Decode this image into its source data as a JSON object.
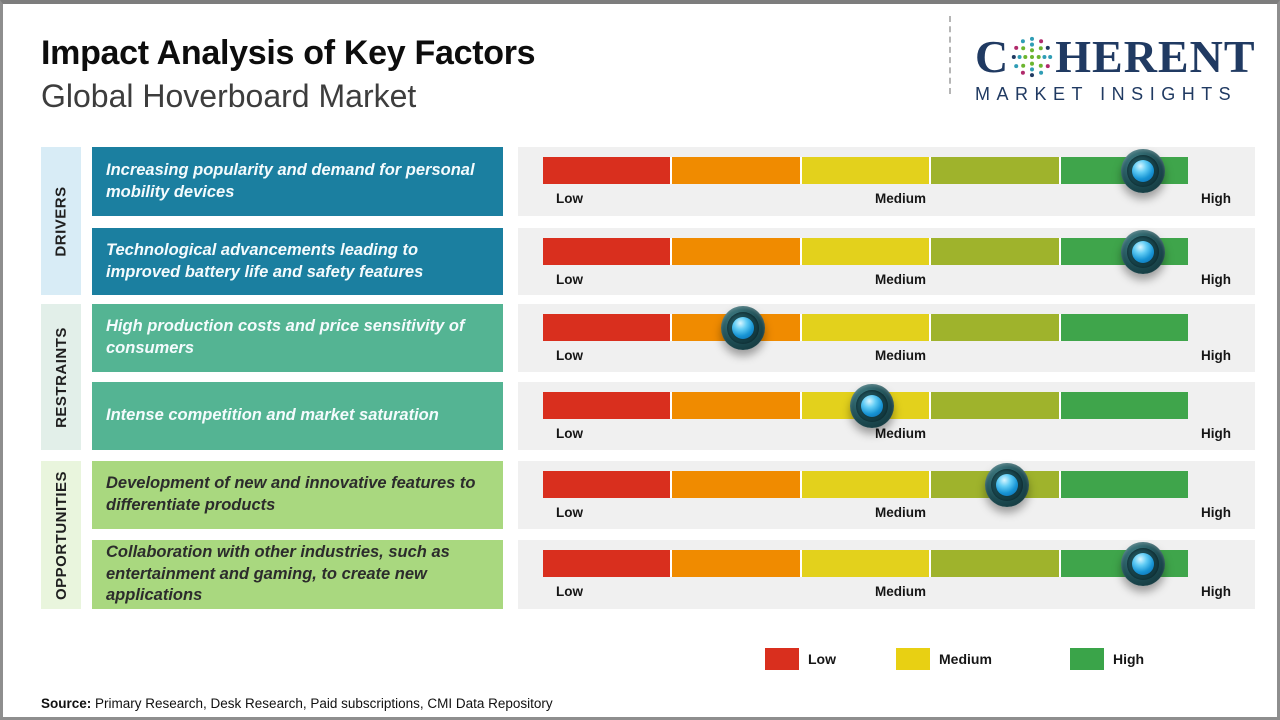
{
  "header": {
    "title": "Impact Analysis of Key Factors",
    "subtitle": "Global Hoverboard Market"
  },
  "logo": {
    "prefix": "C",
    "suffix": "HERENT",
    "tagline": "MARKET INSIGHTS",
    "color": "#203a62"
  },
  "categories": [
    {
      "label": "DRIVERS",
      "strip_color": "#d8ecf6",
      "box_color": "#1b7fa0"
    },
    {
      "label": "RESTRAINTS",
      "strip_color": "#e2efe9",
      "box_color": "#54b493"
    },
    {
      "label": "OPPORTUNITIES",
      "strip_color": "#e9f5dd",
      "box_color": "#a9d87f"
    }
  ],
  "scale": {
    "segment_colors": [
      "#d92f1e",
      "#f08b00",
      "#e3d11c",
      "#9fb32c",
      "#3fa54b"
    ],
    "labels": {
      "low": "Low",
      "medium": "Medium",
      "high": "High"
    }
  },
  "chart_data": {
    "type": "bar",
    "title": "Impact Analysis of Key Factors",
    "subtitle": "Global Hoverboard Market",
    "scale_labels": [
      "Low",
      "Medium",
      "High"
    ],
    "scale_range_pct": [
      0,
      100
    ],
    "legend": [
      "Low",
      "Medium",
      "High"
    ],
    "series": [
      {
        "group": "Drivers",
        "factor": "Increasing popularity and demand for personal mobility devices",
        "impact_pct": 93,
        "impact_level": "High"
      },
      {
        "group": "Drivers",
        "factor": "Technological advancements leading to improved battery life and safety features",
        "impact_pct": 93,
        "impact_level": "High"
      },
      {
        "group": "Restraints",
        "factor": "High production costs and price sensitivity of consumers",
        "impact_pct": 31,
        "impact_level": "Low-Medium"
      },
      {
        "group": "Restraints",
        "factor": "Intense competition and market saturation",
        "impact_pct": 51,
        "impact_level": "Medium"
      },
      {
        "group": "Opportunities",
        "factor": "Development of new and innovative features to differentiate products",
        "impact_pct": 72,
        "impact_level": "Medium-High"
      },
      {
        "group": "Opportunities",
        "factor": "Collaboration with other industries, such as entertainment and gaming, to create new applications",
        "impact_pct": 93,
        "impact_level": "High"
      }
    ]
  },
  "legend": {
    "items": [
      {
        "label": "Low",
        "color": "#d92f1e"
      },
      {
        "label": "Medium",
        "color": "#e8d013"
      },
      {
        "label": "High",
        "color": "#3aa449"
      }
    ]
  },
  "source": {
    "label": "Source:",
    "text": " Primary Research, Desk Research, Paid subscriptions, CMI Data Repository"
  }
}
